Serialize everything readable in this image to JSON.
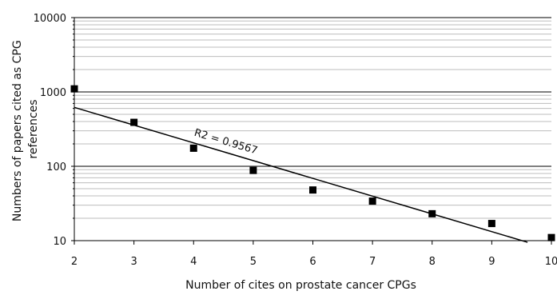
{
  "chart_data": {
    "type": "scatter",
    "title": "",
    "xlabel": "Number of cites on prostate cancer CPGs",
    "ylabel": "Numbers of papers cited as CPG references",
    "ylabel_lines": [
      "Numbers of papers cited as CPG",
      "references"
    ],
    "x_scale": "linear",
    "y_scale": "log",
    "xlim": [
      2,
      10
    ],
    "ylim": [
      10,
      10000
    ],
    "x_ticks": [
      2,
      3,
      4,
      5,
      6,
      7,
      8,
      9,
      10
    ],
    "y_ticks": [
      10,
      100,
      1000,
      10000
    ],
    "y_tick_labels": [
      "10",
      "100",
      "1000",
      "10000"
    ],
    "grid": "horizontal major and minor lines",
    "legend": "none",
    "series": [
      {
        "points": [
          {
            "x": 2,
            "y": 1100
          },
          {
            "x": 3,
            "y": 390
          },
          {
            "x": 4,
            "y": 175
          },
          {
            "x": 5,
            "y": 88
          },
          {
            "x": 6,
            "y": 48
          },
          {
            "x": 7,
            "y": 34
          },
          {
            "x": 8,
            "y": 23
          },
          {
            "x": 9,
            "y": 17
          },
          {
            "x": 10,
            "y": 11
          }
        ],
        "marker": "square",
        "color": "#000000"
      }
    ],
    "trendline": {
      "type": "exponential",
      "points": [
        {
          "x": 2,
          "y": 620
        },
        {
          "x": 9.6,
          "y": 9.5
        }
      ],
      "color": "#000000"
    },
    "annotations": [
      {
        "text": "R2 = 0.9567",
        "x": 4,
        "y": 260
      }
    ]
  }
}
